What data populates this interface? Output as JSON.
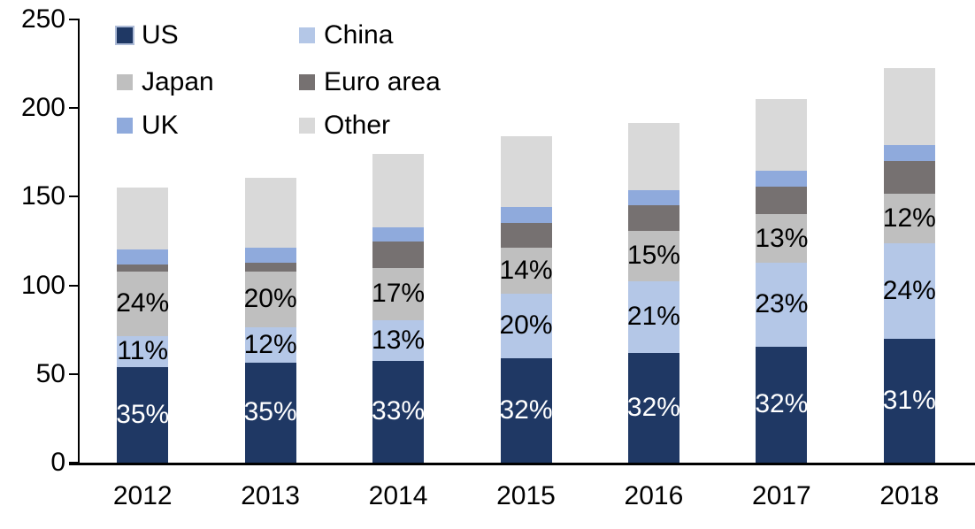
{
  "chart_data": {
    "type": "bar",
    "stacked": true,
    "title": "",
    "xlabel": "",
    "ylabel": "",
    "ylim": [
      0,
      250
    ],
    "yticks": [
      0,
      50,
      100,
      150,
      200,
      250
    ],
    "grid": false,
    "legend_position": "top-left",
    "categories": [
      "2012",
      "2013",
      "2014",
      "2015",
      "2016",
      "2017",
      "2018"
    ],
    "series": [
      {
        "name": "US",
        "color": "#1F3864",
        "swatch_border": "#aebcd8",
        "values": [
          54,
          56.5,
          57.5,
          59,
          62,
          65.5,
          70
        ],
        "labels": [
          "35%",
          "35%",
          "33%",
          "32%",
          "32%",
          "32%",
          "31%"
        ],
        "label_color": "#ffffff"
      },
      {
        "name": "China",
        "color": "#B4C7E7",
        "values": [
          17.5,
          20,
          23,
          36.5,
          40.5,
          47.5,
          54
        ],
        "labels": [
          "11%",
          "12%",
          "13%",
          "20%",
          "21%",
          "23%",
          "24%"
        ],
        "label_color": "#000000"
      },
      {
        "name": "Japan",
        "color": "#BFBFBF",
        "values": [
          36.5,
          31.5,
          29.5,
          26,
          28.5,
          27,
          27.5
        ],
        "labels": [
          "24%",
          "20%",
          "17%",
          "14%",
          "15%",
          "13%",
          "12%"
        ],
        "label_color": "#000000"
      },
      {
        "name": "Euro area",
        "color": "#767171",
        "values": [
          4,
          5,
          15,
          13.5,
          14,
          15.5,
          18.5
        ]
      },
      {
        "name": "UK",
        "color": "#8FAADC",
        "values": [
          8.5,
          8.5,
          8,
          9,
          8.5,
          9,
          9
        ]
      },
      {
        "name": "Other",
        "color": "#D9D9D9",
        "values": [
          34.5,
          39,
          41,
          40,
          38,
          40.5,
          43.5
        ]
      }
    ],
    "totals": [
      155,
      160.5,
      174,
      184,
      191.5,
      205,
      222.5
    ]
  }
}
